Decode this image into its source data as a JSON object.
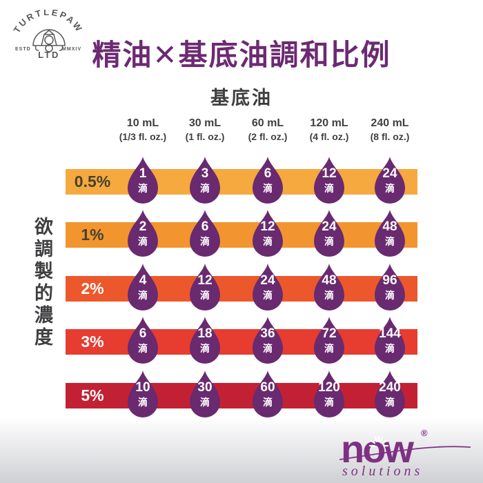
{
  "colors": {
    "title": "#6C2A72",
    "heading_text": "#3F3F41",
    "drop_text": "#FFFFFF",
    "background": "#FFFFFF",
    "bottom_fade": "#CFD0D4",
    "turtlepaw_gray": "#58585A",
    "now_purple": "#7E3183"
  },
  "logo_turtlepaw": {
    "arc_text": "TURTLEPAW",
    "estd": "ESTD",
    "year": "MMXIV",
    "ltd": "LTD"
  },
  "title": "精油✕基底油調和比例",
  "chart_data": {
    "type": "table",
    "title": "精油✕基底油調和比例",
    "column_group_label": "基底油",
    "row_group_label": "欲調製的濃度",
    "columns": [
      {
        "volume": "10 mL",
        "ounces": "(1/3 fl. oz.)"
      },
      {
        "volume": "30 mL",
        "ounces": "(1 fl. oz.)"
      },
      {
        "volume": "60 mL",
        "ounces": "(2 fl. oz.)"
      },
      {
        "volume": "120 mL",
        "ounces": "(4 fl. oz.)"
      },
      {
        "volume": "240 mL",
        "ounces": "(8 fl. oz.)"
      }
    ],
    "rows": [
      {
        "concentration": "0.5%",
        "bar_color": "#F5A93E",
        "label_color": "#46412F",
        "drops": [
          1,
          3,
          6,
          12,
          24
        ]
      },
      {
        "concentration": "1%",
        "bar_color": "#F2952F",
        "label_color": "#46412F",
        "drops": [
          2,
          6,
          12,
          24,
          48
        ]
      },
      {
        "concentration": "2%",
        "bar_color": "#EC582B",
        "label_color": "#FFFFFF",
        "drops": [
          4,
          12,
          24,
          48,
          96
        ]
      },
      {
        "concentration": "3%",
        "bar_color": "#E73C30",
        "label_color": "#FFFFFF",
        "drops": [
          6,
          18,
          36,
          72,
          144
        ]
      },
      {
        "concentration": "5%",
        "bar_color": "#C22134",
        "label_color": "#FFFFFF",
        "drops": [
          10,
          30,
          60,
          120,
          240
        ]
      }
    ],
    "drop_unit": "滴",
    "drop_color": "#692A70"
  },
  "footer_logo": {
    "brand": "now",
    "registered": "®",
    "subbrand": "solutions"
  }
}
